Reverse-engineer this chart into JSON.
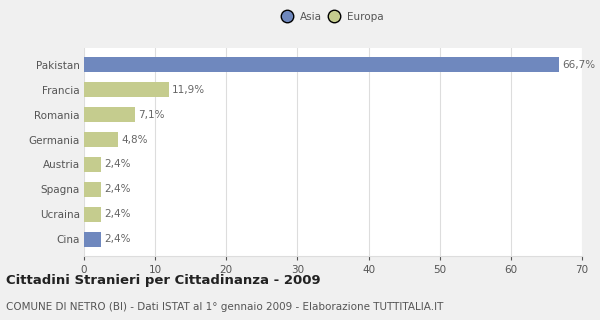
{
  "categories": [
    "Pakistan",
    "Francia",
    "Romania",
    "Germania",
    "Austria",
    "Spagna",
    "Ucraina",
    "Cina"
  ],
  "values": [
    66.7,
    11.9,
    7.1,
    4.8,
    2.4,
    2.4,
    2.4,
    2.4
  ],
  "labels": [
    "66,7%",
    "11,9%",
    "7,1%",
    "4,8%",
    "2,4%",
    "2,4%",
    "2,4%",
    "2,4%"
  ],
  "colors": [
    "#6f88be",
    "#c5cc8e",
    "#c5cc8e",
    "#c5cc8e",
    "#c5cc8e",
    "#c5cc8e",
    "#c5cc8e",
    "#6f88be"
  ],
  "legend_labels": [
    "Asia",
    "Europa"
  ],
  "legend_colors": [
    "#6f88be",
    "#c5cc8e"
  ],
  "title": "Cittadini Stranieri per Cittadinanza - 2009",
  "subtitle": "COMUNE DI NETRO (BI) - Dati ISTAT al 1° gennaio 2009 - Elaborazione TUTTITALIA.IT",
  "xlim": [
    0,
    70
  ],
  "xticks": [
    0,
    10,
    20,
    30,
    40,
    50,
    60,
    70
  ],
  "bg_color": "#f0f0f0",
  "plot_bg_color": "#ffffff",
  "grid_color": "#dddddd",
  "label_fontsize": 7.5,
  "tick_fontsize": 7.5,
  "title_fontsize": 9.5,
  "subtitle_fontsize": 7.5,
  "bar_height": 0.6
}
